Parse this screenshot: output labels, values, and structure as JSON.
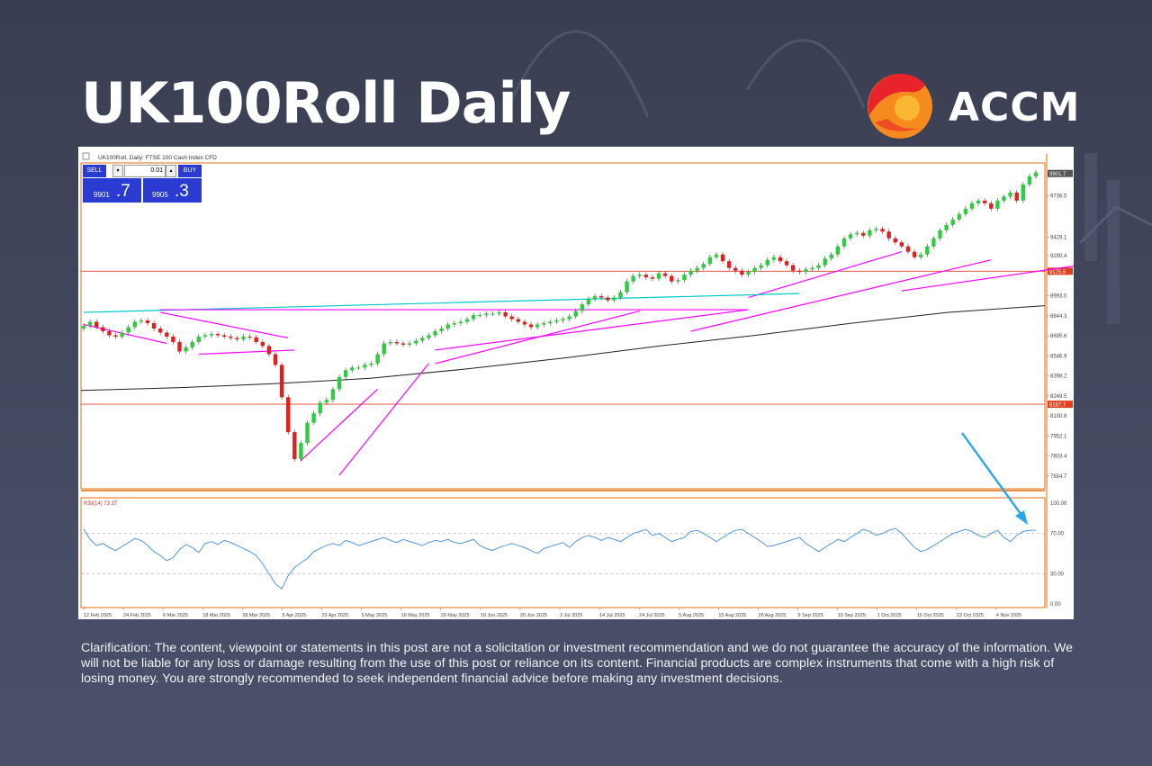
{
  "header": {
    "title": "UK100Roll Daily",
    "brand_name": "ACCM",
    "brand_colors": [
      "#e8232a",
      "#f58a1f",
      "#f7b733"
    ]
  },
  "trade_panel": {
    "sell_label": "SELL",
    "buy_label": "BUY",
    "lot": "0.01",
    "sell_price_prefix": "9901",
    "sell_price_suffix": ".7",
    "buy_price_prefix": "9905",
    "buy_price_suffix": ".3",
    "panel_color": "#2a3bd2"
  },
  "chart_data": {
    "type": "candlestick",
    "symbol_header": "UK100Roll, Daily: FTSE 100 Cash Index CFD",
    "price_axis_ticks": [
      "9736.5",
      "9429.1",
      "9290.4",
      "8993.0",
      "8844.3",
      "8695.6",
      "8546.9",
      "8398.2",
      "8249.5",
      "8100.8",
      "7952.1",
      "7803.4",
      "7654.7"
    ],
    "current_price_label": "9901.7",
    "horizontal_levels": [
      {
        "label": "9175.5",
        "value": 9175.5,
        "color": "#e04020"
      },
      {
        "label": "8187.7",
        "value": 8187.7,
        "color": "#e04020"
      }
    ],
    "x_tick_labels": [
      "12 Feb 2025",
      "24 Feb 2025",
      "6 Mar 2025",
      "18 Mar 2025",
      "28 Mar 2025",
      "9 Apr 2025",
      "23 Apr 2025",
      "5 May 2025",
      "16 May 2025",
      "29 May 2025",
      "10 Jun 2025",
      "20 Jun 2025",
      "2 Jul 2025",
      "14 Jul 2025",
      "24 Jul 2025",
      "5 Aug 2025",
      "15 Aug 2025",
      "28 Aug 2025",
      "9 Sep 2025",
      "19 Sep 2025",
      "1 Oct 2025",
      "15 Oct 2025",
      "23 Oct 2025",
      "4 Nov 2025"
    ],
    "ylim": [
      7560,
      9980
    ],
    "closes": [
      8770,
      8800,
      8760,
      8730,
      8700,
      8690,
      8720,
      8760,
      8800,
      8810,
      8790,
      8750,
      8720,
      8690,
      8650,
      8580,
      8610,
      8650,
      8690,
      8700,
      8710,
      8700,
      8690,
      8680,
      8670,
      8690,
      8685,
      8650,
      8620,
      8560,
      8480,
      8240,
      7980,
      7780,
      7900,
      8050,
      8120,
      8200,
      8220,
      8300,
      8390,
      8440,
      8460,
      8460,
      8480,
      8490,
      8560,
      8640,
      8650,
      8640,
      8630,
      8640,
      8660,
      8680,
      8700,
      8730,
      8750,
      8780,
      8790,
      8800,
      8820,
      8850,
      8850,
      8860,
      8860,
      8870,
      8840,
      8820,
      8800,
      8780,
      8760,
      8780,
      8790,
      8800,
      8810,
      8820,
      8840,
      8880,
      8930,
      8970,
      8990,
      8980,
      8960,
      8980,
      9020,
      9100,
      9140,
      9150,
      9130,
      9120,
      9160,
      9140,
      9100,
      9110,
      9150,
      9180,
      9200,
      9230,
      9280,
      9300,
      9250,
      9200,
      9180,
      9150,
      9170,
      9200,
      9220,
      9260,
      9280,
      9250,
      9220,
      9180,
      9170,
      9190,
      9200,
      9220,
      9270,
      9300,
      9360,
      9420,
      9450,
      9460,
      9440,
      9480,
      9490,
      9470,
      9420,
      9390,
      9360,
      9320,
      9280,
      9300,
      9360,
      9420,
      9480,
      9520,
      9560,
      9600,
      9640,
      9680,
      9700,
      9680,
      9640,
      9700,
      9730,
      9760,
      9700,
      9820,
      9880,
      9910
    ],
    "moving_average": {
      "color": "#222222",
      "values": [
        8290,
        8310,
        8340,
        8380,
        8450,
        8530,
        8620,
        8700,
        8790,
        8870,
        8920
      ]
    },
    "trend_lines": [
      {
        "color": "#ff00ff",
        "from": [
          0,
          8780
        ],
        "to": [
          13,
          8640
        ]
      },
      {
        "color": "#ff00ff",
        "from": [
          12,
          8870
        ],
        "to": [
          32,
          8680
        ]
      },
      {
        "color": "#ff00ff",
        "from": [
          18,
          8560
        ],
        "to": [
          33,
          8590
        ]
      },
      {
        "color": "#ff00ff",
        "from": [
          34,
          7770
        ],
        "to": [
          46,
          8300
        ]
      },
      {
        "color": "#ff00ff",
        "from": [
          40,
          7660
        ],
        "to": [
          54,
          8490
        ]
      },
      {
        "color": "#ff00ff",
        "from": [
          55,
          8490
        ],
        "to": [
          87,
          8880
        ]
      },
      {
        "color": "#ff00ff",
        "from": [
          55,
          8590
        ],
        "to": [
          104,
          8890
        ]
      },
      {
        "color": "#ff00ff",
        "from": [
          95,
          8730
        ],
        "to": [
          142,
          9260
        ]
      },
      {
        "color": "#ff00ff",
        "from": [
          104,
          8980
        ],
        "to": [
          128,
          9320
        ]
      },
      {
        "color": "#ff00ff",
        "from": [
          128,
          9030
        ],
        "to": [
          188,
          9440
        ]
      },
      {
        "color": "#00c8c8",
        "from": [
          0,
          8870
        ],
        "to": [
          112,
          9010
        ]
      },
      {
        "color": "#ff00ff",
        "from": [
          12,
          8890
        ],
        "to": [
          104,
          8890
        ]
      }
    ],
    "rsi": {
      "label": "RSI(14) 73.37",
      "ticks": [
        "100.00",
        "70.00",
        "30.00",
        "0.00"
      ],
      "ylim": [
        0,
        100
      ],
      "levels": [
        70,
        30
      ],
      "color": "#3c8dde",
      "values": [
        74,
        64,
        58,
        60,
        56,
        53,
        57,
        61,
        65,
        63,
        58,
        52,
        48,
        43,
        46,
        54,
        59,
        56,
        51,
        60,
        62,
        59,
        63,
        61,
        58,
        55,
        52,
        48,
        40,
        30,
        20,
        15,
        28,
        36,
        41,
        45,
        52,
        55,
        58,
        60,
        58,
        63,
        61,
        58,
        60,
        62,
        64,
        66,
        63,
        61,
        64,
        62,
        60,
        58,
        61,
        63,
        62,
        64,
        61,
        60,
        62,
        64,
        58,
        55,
        53,
        56,
        58,
        60,
        58,
        56,
        53,
        50,
        55,
        57,
        59,
        61,
        56,
        62,
        66,
        68,
        66,
        63,
        66,
        64,
        62,
        66,
        70,
        72,
        74,
        68,
        70,
        66,
        62,
        64,
        66,
        72,
        73,
        70,
        66,
        62,
        66,
        70,
        73,
        74,
        70,
        66,
        62,
        57,
        58,
        60,
        62,
        64,
        66,
        60,
        56,
        52,
        56,
        60,
        64,
        62,
        66,
        70,
        74,
        72,
        68,
        70,
        73,
        75,
        70,
        63,
        56,
        52,
        54,
        58,
        62,
        66,
        70,
        72,
        74,
        72,
        68,
        66,
        70,
        73,
        66,
        62,
        68,
        72,
        73,
        73
      ]
    }
  },
  "annotation": {
    "arrow_color": "#29a7e6"
  },
  "disclaimer": "Clarification: The content, viewpoint or statements in this post are not a solicitation or investment recommendation and we do not guarantee the accuracy of the information. We will not be liable for any loss or damage resulting from the use of this post or reliance on its content. Financial products are complex instruments that come with a high risk of losing money. You are strongly recommended to seek independent financial advice before making any investment decisions."
}
